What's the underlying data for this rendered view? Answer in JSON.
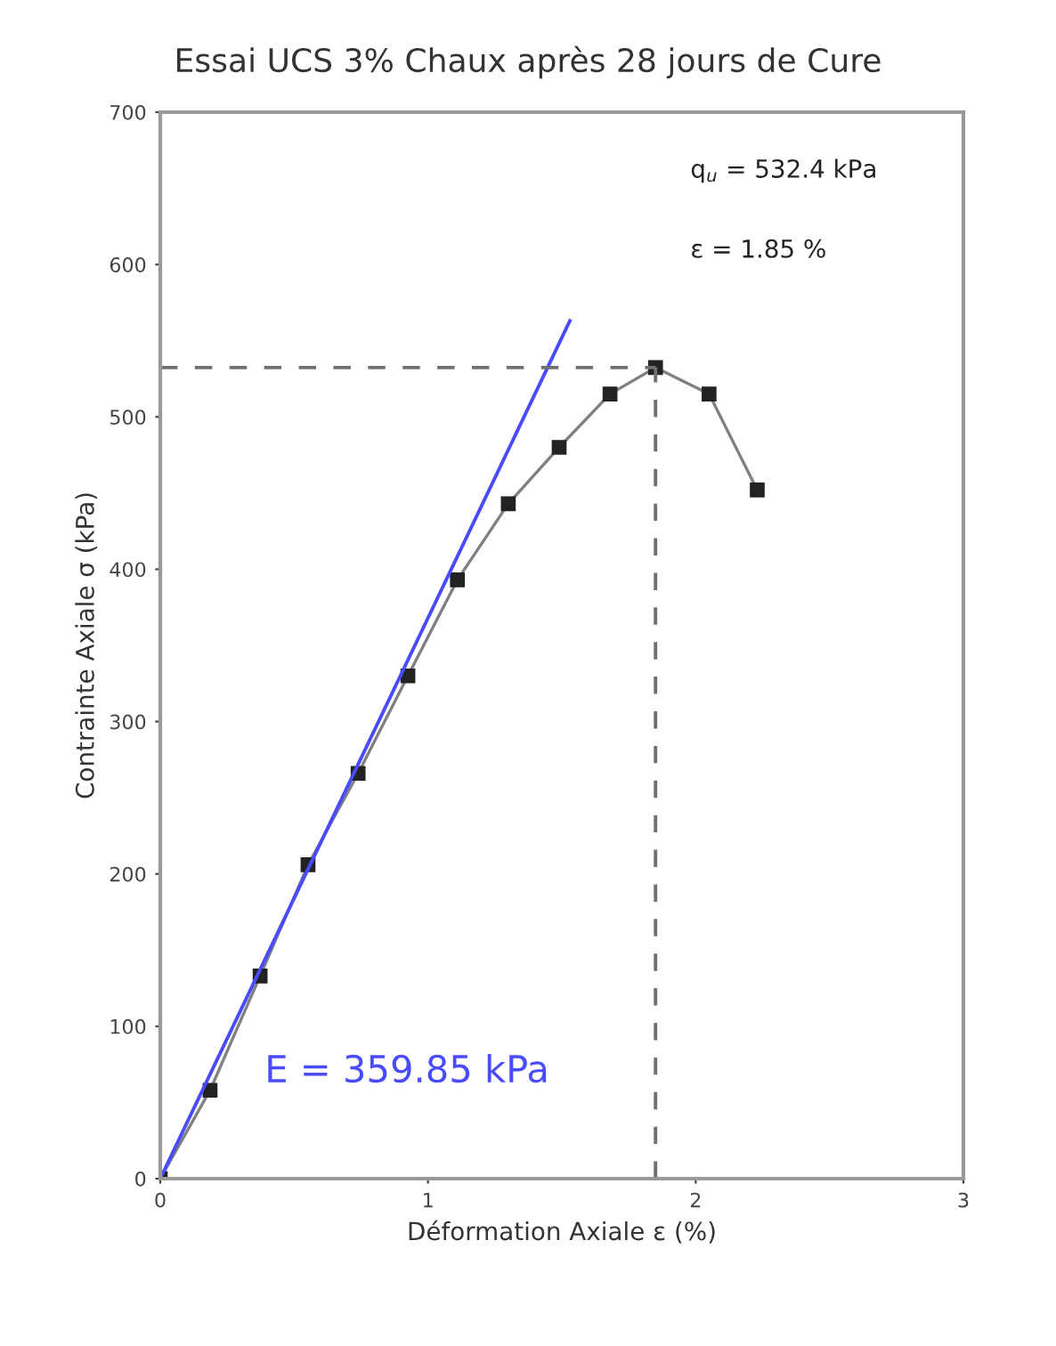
{
  "chart_data": {
    "type": "line",
    "title": "Essai UCS 3% Chaux après 28 jours de Cure",
    "xlabel": "Déformation Axiale ε (%)",
    "ylabel": "Contrainte Axiale σ (kPa)",
    "xlim": [
      0,
      3
    ],
    "xticks": [
      0,
      1,
      2,
      3
    ],
    "ylim": [
      0,
      700
    ],
    "yticks": [
      0,
      100,
      200,
      300,
      400,
      500,
      600,
      700
    ],
    "grid": false,
    "legend": false,
    "series": [
      {
        "color": "#808080",
        "marker": "square",
        "x": [
          0,
          0.186,
          0.373,
          0.552,
          0.739,
          0.925,
          1.11,
          1.3,
          1.49,
          1.68,
          1.85,
          2.05,
          2.23
        ],
        "values": [
          0,
          58,
          133,
          206,
          266,
          330,
          393,
          443,
          480,
          515,
          532.4,
          515,
          452
        ]
      },
      {
        "color": "#4a4aff",
        "marker": "none",
        "x": [
          0,
          1.53
        ],
        "values": [
          0,
          563
        ]
      },
      {
        "color": "#707070",
        "marker": "none",
        "line_style": "dashed",
        "x": [
          0,
          1.85
        ],
        "values": [
          532.4,
          532.4
        ]
      },
      {
        "color": "#707070",
        "marker": "none",
        "line_style": "dashed",
        "x": [
          1.85,
          1.85
        ],
        "values": [
          0,
          532.4
        ]
      }
    ],
    "annotations": [
      "q$_{u}$ = 532.4 kPa",
      "ε = 1.85 %",
      "E = 359.85 kPa"
    ]
  }
}
